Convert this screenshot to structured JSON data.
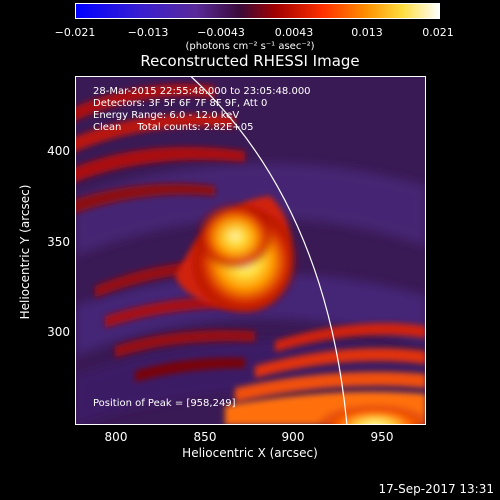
{
  "colorbar": {
    "tick_labels": [
      "−0.021",
      "−0.013",
      "−0.0043",
      "0.0043",
      "0.013",
      "0.021"
    ],
    "unit_label": "(photons cm⁻² s⁻¹ asec⁻²)"
  },
  "plot": {
    "title": "Reconstructed RHESSI Image",
    "xlabel": "Heliocentric X (arcsec)",
    "ylabel": "Heliocentric Y (arcsec)",
    "x_ticks": [
      "800",
      "850",
      "900",
      "950"
    ],
    "y_ticks": [
      "400",
      "350",
      "300"
    ],
    "annotations": [
      "28-Mar-2015 22:55:48.000 to 23:05:48.000",
      "Detectors: 3F 5F 6F 7F 8F 9F, Att 0",
      "Energy Range: 6.0 - 12.0 keV",
      "Clean     Total counts: 2.82E+05"
    ],
    "peak_label": "Position of Peak = [958,249]"
  },
  "footer": {
    "date": "17-Sep-2017 13:31"
  },
  "colors": {
    "colorbar_stops": [
      "#0000ff",
      "#3a1fd0",
      "#5a2a9a",
      "#4a0c4a",
      "#a00000",
      "#ff3000",
      "#ff9000",
      "#ffdd40",
      "#ffffff"
    ]
  }
}
